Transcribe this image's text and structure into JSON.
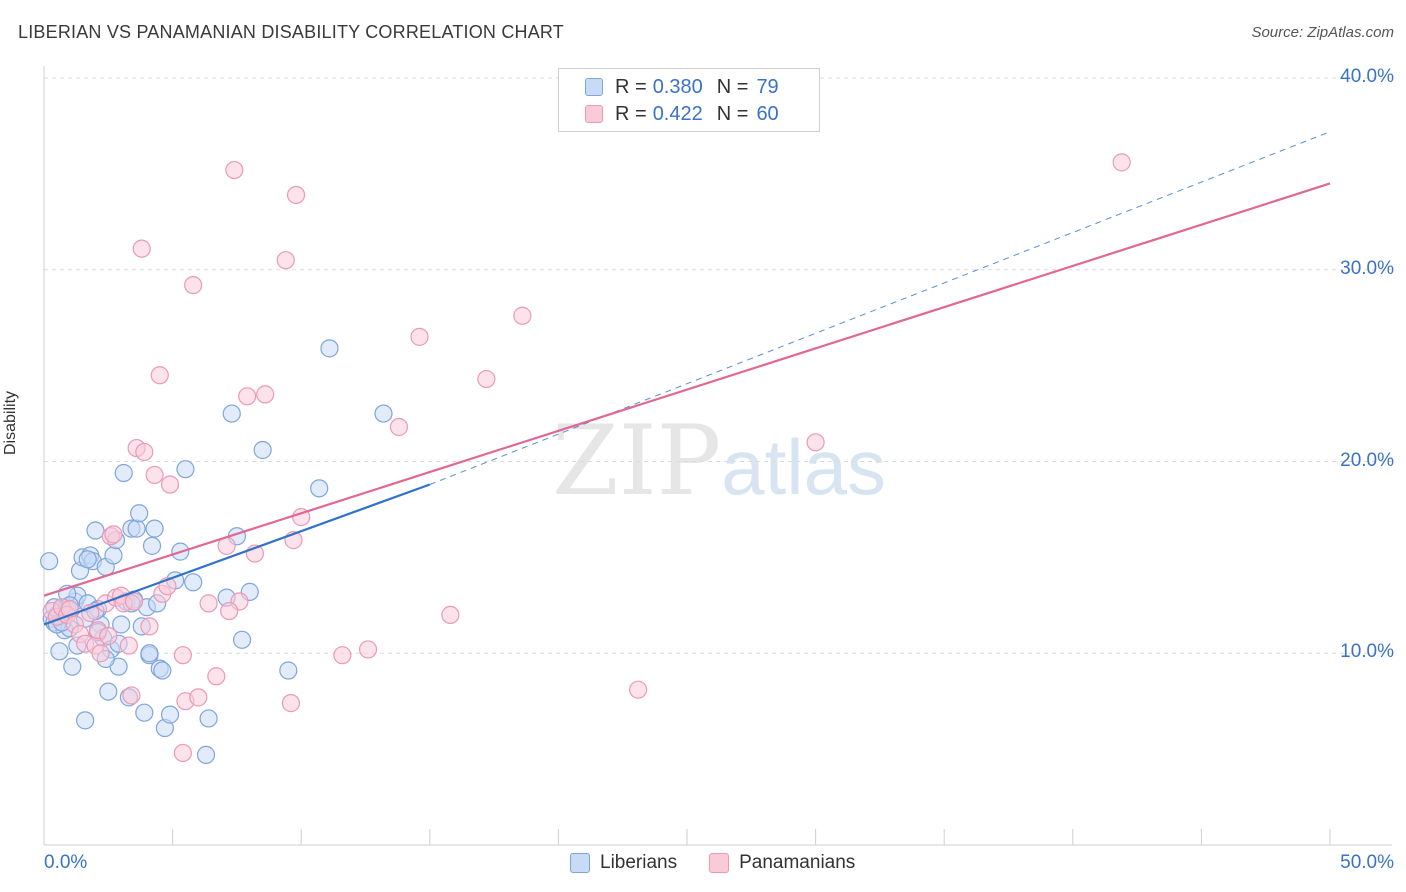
{
  "title": "LIBERIAN VS PANAMANIAN DISABILITY CORRELATION CHART",
  "source": "Source: ZipAtlas.com",
  "watermark": {
    "zip": "ZIP",
    "atlas": "atlas"
  },
  "colors": {
    "liberians_fill": "#c8dbf6",
    "liberians_stroke": "#7fa5dc",
    "liberians_line": "#3072c8",
    "panamanians_fill": "#f9cbd9",
    "panamanians_stroke": "#eb9ab5",
    "panamanians_line": "#e06892",
    "value_text": "#3a72c8"
  },
  "legend": {
    "rows": [
      {
        "r_label": "R =",
        "r_value": "0.380",
        "n_label": "N =",
        "n_value": "79"
      },
      {
        "r_label": "R =",
        "r_value": "0.422",
        "n_label": "N =",
        "n_value": "60"
      }
    ],
    "bottom": [
      "Liberians",
      "Panamanians"
    ]
  },
  "chart_data": {
    "type": "scatter",
    "title": "LIBERIAN VS PANAMANIAN DISABILITY CORRELATION CHART",
    "xlabel": "",
    "ylabel": "Disability",
    "xlim": [
      0,
      50
    ],
    "ylim": [
      0,
      40
    ],
    "x_tick_labels": [
      "0.0%",
      "50.0%"
    ],
    "y_ticks": [
      10,
      20,
      30,
      40
    ],
    "y_tick_labels": [
      "10.0%",
      "20.0%",
      "30.0%",
      "40.0%"
    ],
    "grid": true,
    "series": [
      {
        "name": "Liberians",
        "R": 0.38,
        "N": 79,
        "trend": {
          "x0": 0,
          "y0": 11.5,
          "x1": 15,
          "y1": 18.8,
          "dashed_to_x": 50,
          "dashed_to_y": 37.2
        },
        "points": [
          [
            0.3,
            11.8
          ],
          [
            0.4,
            11.6
          ],
          [
            0.5,
            12.0
          ],
          [
            0.6,
            12.1
          ],
          [
            0.7,
            12.3
          ],
          [
            0.8,
            11.2
          ],
          [
            0.9,
            12.4
          ],
          [
            1.0,
            11.3
          ],
          [
            1.1,
            9.3
          ],
          [
            1.2,
            12.7
          ],
          [
            1.3,
            13.0
          ],
          [
            1.4,
            14.3
          ],
          [
            1.5,
            15.0
          ],
          [
            1.6,
            11.8
          ],
          [
            1.7,
            12.6
          ],
          [
            1.8,
            15.1
          ],
          [
            1.9,
            14.8
          ],
          [
            2.0,
            16.4
          ],
          [
            2.1,
            12.3
          ],
          [
            2.2,
            11.5
          ],
          [
            2.3,
            10.8
          ],
          [
            2.4,
            14.5
          ],
          [
            2.5,
            8.0
          ],
          [
            2.6,
            10.2
          ],
          [
            2.7,
            15.1
          ],
          [
            2.8,
            15.9
          ],
          [
            2.9,
            9.3
          ],
          [
            3.0,
            11.5
          ],
          [
            3.1,
            19.4
          ],
          [
            3.2,
            12.7
          ],
          [
            3.3,
            7.7
          ],
          [
            3.4,
            16.5
          ],
          [
            3.5,
            12.8
          ],
          [
            3.6,
            16.5
          ],
          [
            3.7,
            17.3
          ],
          [
            3.8,
            11.4
          ],
          [
            3.9,
            6.9
          ],
          [
            4.0,
            12.4
          ],
          [
            4.1,
            9.9
          ],
          [
            4.2,
            15.6
          ],
          [
            4.3,
            16.5
          ],
          [
            4.4,
            12.6
          ],
          [
            4.5,
            9.2
          ],
          [
            4.7,
            6.1
          ],
          [
            4.9,
            6.8
          ],
          [
            5.1,
            13.8
          ],
          [
            5.3,
            15.3
          ],
          [
            5.5,
            19.6
          ],
          [
            6.3,
            4.7
          ],
          [
            7.1,
            12.9
          ],
          [
            7.5,
            16.1
          ],
          [
            7.7,
            10.7
          ],
          [
            8.0,
            13.2
          ],
          [
            8.5,
            20.6
          ],
          [
            9.5,
            9.1
          ],
          [
            10.7,
            18.6
          ],
          [
            11.1,
            25.9
          ],
          [
            13.2,
            22.5
          ],
          [
            7.3,
            22.5
          ],
          [
            0.2,
            14.8
          ],
          [
            0.6,
            10.1
          ],
          [
            0.9,
            13.1
          ],
          [
            1.6,
            6.5
          ],
          [
            2.0,
            12.2
          ],
          [
            1.3,
            10.4
          ],
          [
            0.8,
            12.0
          ],
          [
            1.0,
            12.5
          ],
          [
            2.1,
            11.1
          ],
          [
            2.9,
            10.5
          ],
          [
            3.4,
            12.6
          ],
          [
            0.4,
            12.4
          ],
          [
            0.5,
            11.5
          ],
          [
            1.7,
            14.9
          ],
          [
            2.4,
            9.7
          ],
          [
            4.1,
            10.0
          ],
          [
            4.6,
            9.1
          ],
          [
            6.4,
            6.6
          ],
          [
            5.8,
            13.7
          ],
          [
            0.7,
            11.6
          ]
        ]
      },
      {
        "name": "Panamanians",
        "R": 0.422,
        "N": 60,
        "trend": {
          "x0": 0,
          "y0": 13.0,
          "x1": 50,
          "y1": 34.5
        },
        "points": [
          [
            0.3,
            12.2
          ],
          [
            0.5,
            11.9
          ],
          [
            0.7,
            12.4
          ],
          [
            0.9,
            12.0
          ],
          [
            1.0,
            12.3
          ],
          [
            1.2,
            11.5
          ],
          [
            1.4,
            11.0
          ],
          [
            1.6,
            10.5
          ],
          [
            1.8,
            12.1
          ],
          [
            2.0,
            10.4
          ],
          [
            2.1,
            11.2
          ],
          [
            2.2,
            10.0
          ],
          [
            2.4,
            12.6
          ],
          [
            2.6,
            16.1
          ],
          [
            2.7,
            16.2
          ],
          [
            2.8,
            12.9
          ],
          [
            3.0,
            13.0
          ],
          [
            3.1,
            12.6
          ],
          [
            3.3,
            10.4
          ],
          [
            3.5,
            12.7
          ],
          [
            3.6,
            20.7
          ],
          [
            3.8,
            31.1
          ],
          [
            3.9,
            20.5
          ],
          [
            4.1,
            11.4
          ],
          [
            4.3,
            19.3
          ],
          [
            4.5,
            24.5
          ],
          [
            4.6,
            13.1
          ],
          [
            4.8,
            13.5
          ],
          [
            4.9,
            18.8
          ],
          [
            5.4,
            4.8
          ],
          [
            5.5,
            7.5
          ],
          [
            5.4,
            9.9
          ],
          [
            5.8,
            29.2
          ],
          [
            6.0,
            7.7
          ],
          [
            6.4,
            12.6
          ],
          [
            6.7,
            8.8
          ],
          [
            7.1,
            15.6
          ],
          [
            7.4,
            35.2
          ],
          [
            7.6,
            12.7
          ],
          [
            7.9,
            23.4
          ],
          [
            8.2,
            15.2
          ],
          [
            8.6,
            23.5
          ],
          [
            9.4,
            30.5
          ],
          [
            9.6,
            7.4
          ],
          [
            9.7,
            15.9
          ],
          [
            9.8,
            33.9
          ],
          [
            10.0,
            17.1
          ],
          [
            11.6,
            9.9
          ],
          [
            12.6,
            10.2
          ],
          [
            13.8,
            21.8
          ],
          [
            14.6,
            26.5
          ],
          [
            15.8,
            12.0
          ],
          [
            17.2,
            24.3
          ],
          [
            18.6,
            27.6
          ],
          [
            23.1,
            8.1
          ],
          [
            30.0,
            21.0
          ],
          [
            41.9,
            35.6
          ],
          [
            7.2,
            12.2
          ],
          [
            3.4,
            7.8
          ],
          [
            2.5,
            10.9
          ]
        ]
      }
    ]
  }
}
